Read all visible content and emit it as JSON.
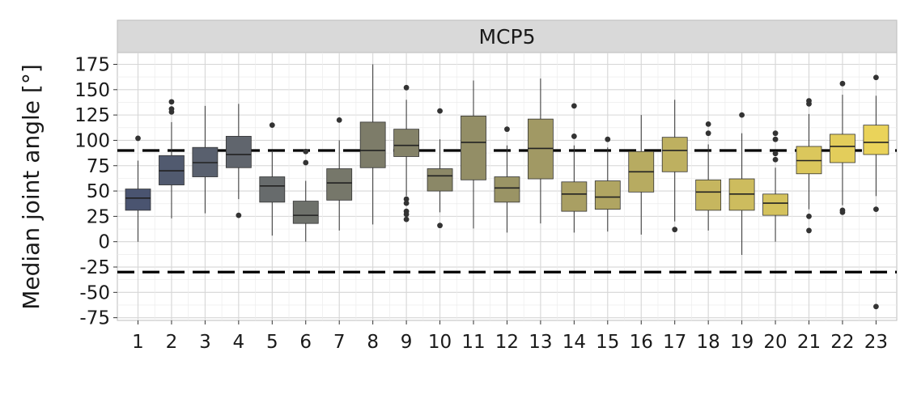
{
  "chart_data": {
    "type": "box",
    "title": "MCP5",
    "xlabel": "",
    "ylabel": "Median joint angle [°]",
    "ylim": [
      -78,
      186
    ],
    "y_ticks": [
      175,
      150,
      125,
      100,
      75,
      50,
      25,
      0,
      -25,
      -50,
      -75
    ],
    "y_tick_labels": [
      "175",
      "150",
      "125",
      "100",
      "75",
      "50",
      "25",
      "0",
      "-25",
      "-50",
      "-75"
    ],
    "categories": [
      "1",
      "2",
      "3",
      "4",
      "5",
      "6",
      "7",
      "8",
      "9",
      "10",
      "11",
      "12",
      "13",
      "14",
      "15",
      "16",
      "17",
      "18",
      "19",
      "20",
      "21",
      "22",
      "23"
    ],
    "reference_lines": [
      90,
      -30
    ],
    "grid": true,
    "color_scale": {
      "low": "#4a5470",
      "high": "#ead35a"
    },
    "boxes": [
      {
        "category": "1",
        "min": 0,
        "q1": 31,
        "median": 43,
        "q3": 52,
        "max": 80,
        "outliers": [
          102
        ]
      },
      {
        "category": "2",
        "min": 23,
        "q1": 56,
        "median": 70,
        "q3": 85,
        "max": 118,
        "outliers": [
          128,
          131,
          138
        ]
      },
      {
        "category": "3",
        "min": 28,
        "q1": 64,
        "median": 78,
        "q3": 93,
        "max": 134,
        "outliers": []
      },
      {
        "category": "4",
        "min": 42,
        "q1": 73,
        "median": 86,
        "q3": 104,
        "max": 136,
        "outliers": [
          26
        ]
      },
      {
        "category": "5",
        "min": 6,
        "q1": 39,
        "median": 55,
        "q3": 64,
        "max": 90,
        "outliers": [
          115
        ]
      },
      {
        "category": "6",
        "min": 0,
        "q1": 18,
        "median": 26,
        "q3": 40,
        "max": 60,
        "outliers": [
          78,
          89
        ]
      },
      {
        "category": "7",
        "min": 11,
        "q1": 41,
        "median": 58,
        "q3": 72,
        "max": 100,
        "outliers": [
          120
        ]
      },
      {
        "category": "8",
        "min": 17,
        "q1": 73,
        "median": 90,
        "q3": 118,
        "max": 175,
        "outliers": []
      },
      {
        "category": "9",
        "min": 45,
        "q1": 84,
        "median": 95,
        "q3": 111,
        "max": 140,
        "outliers": [
          152,
          42,
          38,
          30,
          27,
          22
        ]
      },
      {
        "category": "10",
        "min": 29,
        "q1": 50,
        "median": 65,
        "q3": 72,
        "max": 101,
        "outliers": [
          129,
          16
        ]
      },
      {
        "category": "11",
        "min": 13,
        "q1": 61,
        "median": 98,
        "q3": 124,
        "max": 159,
        "outliers": []
      },
      {
        "category": "12",
        "min": 9,
        "q1": 39,
        "median": 53,
        "q3": 64,
        "max": 95,
        "outliers": [
          111
        ]
      },
      {
        "category": "13",
        "min": 18,
        "q1": 62,
        "median": 92,
        "q3": 121,
        "max": 161,
        "outliers": []
      },
      {
        "category": "14",
        "min": 9,
        "q1": 30,
        "median": 47,
        "q3": 59,
        "max": 95,
        "outliers": [
          104,
          134
        ]
      },
      {
        "category": "15",
        "min": 10,
        "q1": 32,
        "median": 44,
        "q3": 60,
        "max": 93,
        "outliers": [
          101
        ]
      },
      {
        "category": "16",
        "min": 7,
        "q1": 49,
        "median": 69,
        "q3": 89,
        "max": 125,
        "outliers": []
      },
      {
        "category": "17",
        "min": 20,
        "q1": 69,
        "median": 90,
        "q3": 103,
        "max": 140,
        "outliers": [
          12
        ]
      },
      {
        "category": "18",
        "min": 11,
        "q1": 31,
        "median": 49,
        "q3": 61,
        "max": 96,
        "outliers": [
          107,
          116
        ]
      },
      {
        "category": "19",
        "min": -13,
        "q1": 31,
        "median": 47,
        "q3": 62,
        "max": 107,
        "outliers": [
          125
        ]
      },
      {
        "category": "20",
        "min": 0,
        "q1": 26,
        "median": 38,
        "q3": 47,
        "max": 73,
        "outliers": [
          81,
          87,
          101,
          107
        ]
      },
      {
        "category": "21",
        "min": 32,
        "q1": 67,
        "median": 80,
        "q3": 94,
        "max": 126,
        "outliers": [
          136,
          139,
          25,
          11
        ]
      },
      {
        "category": "22",
        "min": 36,
        "q1": 78,
        "median": 94,
        "q3": 106,
        "max": 145,
        "outliers": [
          156,
          31,
          29
        ]
      },
      {
        "category": "23",
        "min": 45,
        "q1": 86,
        "median": 98,
        "q3": 115,
        "max": 144,
        "outliers": [
          162,
          32,
          -64
        ]
      }
    ]
  }
}
